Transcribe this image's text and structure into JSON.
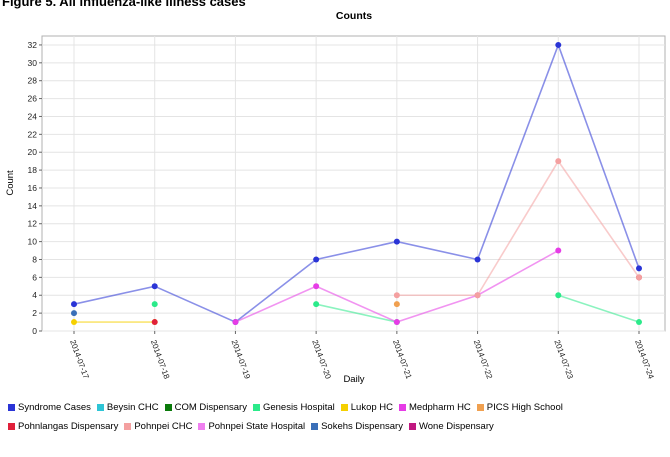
{
  "figure_title": "Figure 5. All influenza-like illness cases",
  "chart_data": {
    "type": "line",
    "title": "Counts",
    "xlabel": "Daily",
    "ylabel": "Count",
    "ylim": [
      0,
      33
    ],
    "yticks": [
      0,
      2,
      4,
      6,
      8,
      10,
      12,
      14,
      16,
      18,
      20,
      22,
      24,
      26,
      28,
      30,
      32
    ],
    "categories": [
      "2014-07-17",
      "2014-07-18",
      "2014-07-19",
      "2014-07-20",
      "2014-07-21",
      "2014-07-22",
      "2014-07-23",
      "2014-07-24"
    ],
    "grid": true,
    "legend_position": "bottom",
    "series": [
      {
        "name": "Syndrome Cases",
        "color": "#2a34d6",
        "values": [
          3,
          5,
          1,
          8,
          10,
          8,
          32,
          7
        ]
      },
      {
        "name": "Beysin CHC",
        "color": "#2ec5d6",
        "values": [
          null,
          null,
          null,
          null,
          null,
          null,
          null,
          null
        ]
      },
      {
        "name": "COM Dispensary",
        "color": "#0a7a0a",
        "values": [
          null,
          null,
          null,
          null,
          null,
          null,
          null,
          null
        ]
      },
      {
        "name": "Genesis Hospital",
        "color": "#2bea8a",
        "values": [
          null,
          3,
          null,
          3,
          1,
          null,
          4,
          1
        ]
      },
      {
        "name": "Lukop HC",
        "color": "#f5d000",
        "values": [
          1,
          1,
          null,
          null,
          null,
          null,
          null,
          null
        ]
      },
      {
        "name": "Medpharm HC",
        "color": "#e63ce6",
        "values": [
          null,
          null,
          1,
          5,
          1,
          4,
          9,
          null
        ]
      },
      {
        "name": "PICS High School",
        "color": "#f0a050",
        "values": [
          null,
          null,
          null,
          null,
          3,
          null,
          null,
          null
        ]
      },
      {
        "name": "Pohnlangas Dispensary",
        "color": "#e0203a",
        "values": [
          null,
          1,
          null,
          null,
          null,
          null,
          null,
          6
        ]
      },
      {
        "name": "Pohnpei CHC",
        "color": "#f4a0a0",
        "values": [
          null,
          null,
          null,
          null,
          4,
          4,
          19,
          6
        ]
      },
      {
        "name": "Pohnpei State Hospital",
        "color": "#f080f0",
        "values": [
          null,
          null,
          null,
          null,
          null,
          null,
          null,
          null
        ]
      },
      {
        "name": "Sokehs Dispensary",
        "color": "#3a6fb8",
        "values": [
          2,
          null,
          null,
          null,
          null,
          null,
          null,
          null
        ]
      },
      {
        "name": "Wone Dispensary",
        "color": "#c01880",
        "values": [
          null,
          null,
          null,
          null,
          null,
          null,
          null,
          null
        ]
      }
    ]
  }
}
